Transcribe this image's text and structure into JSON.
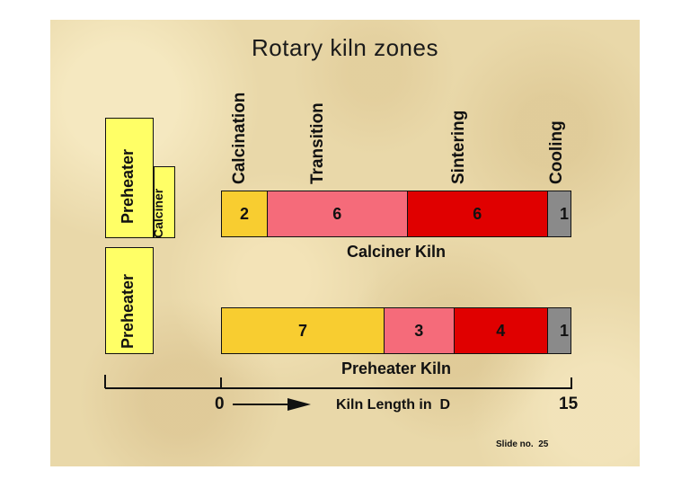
{
  "slide": {
    "title": "Rotary kiln zones",
    "slide_number": "Slide no.  25"
  },
  "zones": [
    "Calcination",
    "Transition",
    "Sintering",
    "Cooling"
  ],
  "colors": {
    "calcination": "#f8cd30",
    "transition": "#f56b7a",
    "sintering": "#e00000",
    "cooling": "#8a8a8a",
    "preheater_box": "#ffff66",
    "background": "#e9d8a9"
  },
  "calciner_equipment": {
    "preheater_label": "Preheater",
    "calciner_label": "Calciner"
  },
  "preheater_equipment": {
    "preheater_label": "Preheater"
  },
  "axis": {
    "min_label": "0",
    "max_label": "15",
    "caption": "Kiln Length in  D"
  },
  "chart_data": {
    "type": "bar",
    "stacked": true,
    "orientation": "horizontal",
    "categories": [
      "Calciner Kiln",
      "Preheater Kiln"
    ],
    "series": [
      {
        "name": "Calcination",
        "values": [
          2,
          7
        ]
      },
      {
        "name": "Transition",
        "values": [
          6,
          3
        ]
      },
      {
        "name": "Sintering",
        "values": [
          6,
          4
        ]
      },
      {
        "name": "Cooling",
        "values": [
          1,
          1
        ]
      }
    ],
    "value_labels": [
      [
        "2",
        "6",
        "6",
        "1"
      ],
      [
        "7",
        "3",
        "4",
        "1"
      ]
    ],
    "xlim": [
      0,
      15
    ],
    "xlabel": "Kiln Length in  D"
  }
}
